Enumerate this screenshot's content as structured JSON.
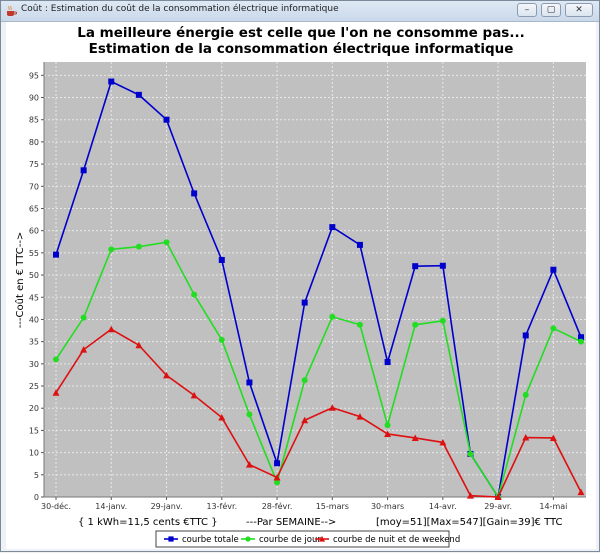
{
  "window": {
    "title": "Coût : Estimation du coût de la consommation électrique informatique",
    "minimize_glyph": "–",
    "maximize_glyph": "▢",
    "close_glyph": "✕"
  },
  "chart_data": {
    "type": "line",
    "title": "La meilleure énergie est celle que l'on ne consomme pas...",
    "subtitle": "Estimation de la consommation électrique informatique",
    "ylabel": "---Coût en € TTC-->",
    "ylim": [
      0,
      98
    ],
    "y_ticks": [
      0,
      5,
      10,
      15,
      20,
      25,
      30,
      35,
      40,
      45,
      50,
      55,
      60,
      65,
      70,
      75,
      80,
      85,
      90,
      95
    ],
    "x_tick_labels": [
      "30-déc.",
      "14-janv.",
      "29-janv.",
      "13-févr.",
      "28-févr.",
      "15-mars",
      "30-mars",
      "14-avr.",
      "29-avr.",
      "14-mai"
    ],
    "xlabel_parts": [
      "{ 1 kWh=11,5 cents €TTC }",
      "---Par SEMAINE-->",
      "[moy=51][Max=547][Gain=39]€ TTC"
    ],
    "grid": true,
    "legend_position": "bottom",
    "series": [
      {
        "name": "courbe totale",
        "color": "#0000cc",
        "marker": "square",
        "values": [
          54.6,
          73.6,
          93.6,
          90.6,
          85,
          68.4,
          53.4,
          25.8,
          7.6,
          43.8,
          60.8,
          56.8,
          30.4,
          52,
          52.1,
          9.7,
          0,
          36.4,
          51.2,
          36
        ]
      },
      {
        "name": "courbe de jour",
        "color": "#22dd22",
        "marker": "circle",
        "values": [
          31,
          40.4,
          55.8,
          56.4,
          57.4,
          45.6,
          35.4,
          18.6,
          3.3,
          26.3,
          40.6,
          38.8,
          16.2,
          38.8,
          39.7,
          9.7,
          0,
          23,
          38,
          35
        ]
      },
      {
        "name": "courbe de nuit et de weekend",
        "color": "#dd1111",
        "marker": "triangle",
        "values": [
          23.5,
          33.2,
          37.8,
          34.2,
          27.4,
          22.9,
          17.9,
          7.3,
          4.4,
          17.3,
          20.1,
          18.1,
          14.2,
          13.3,
          12.3,
          0.3,
          0,
          13.4,
          13.3,
          1.1
        ]
      }
    ]
  }
}
